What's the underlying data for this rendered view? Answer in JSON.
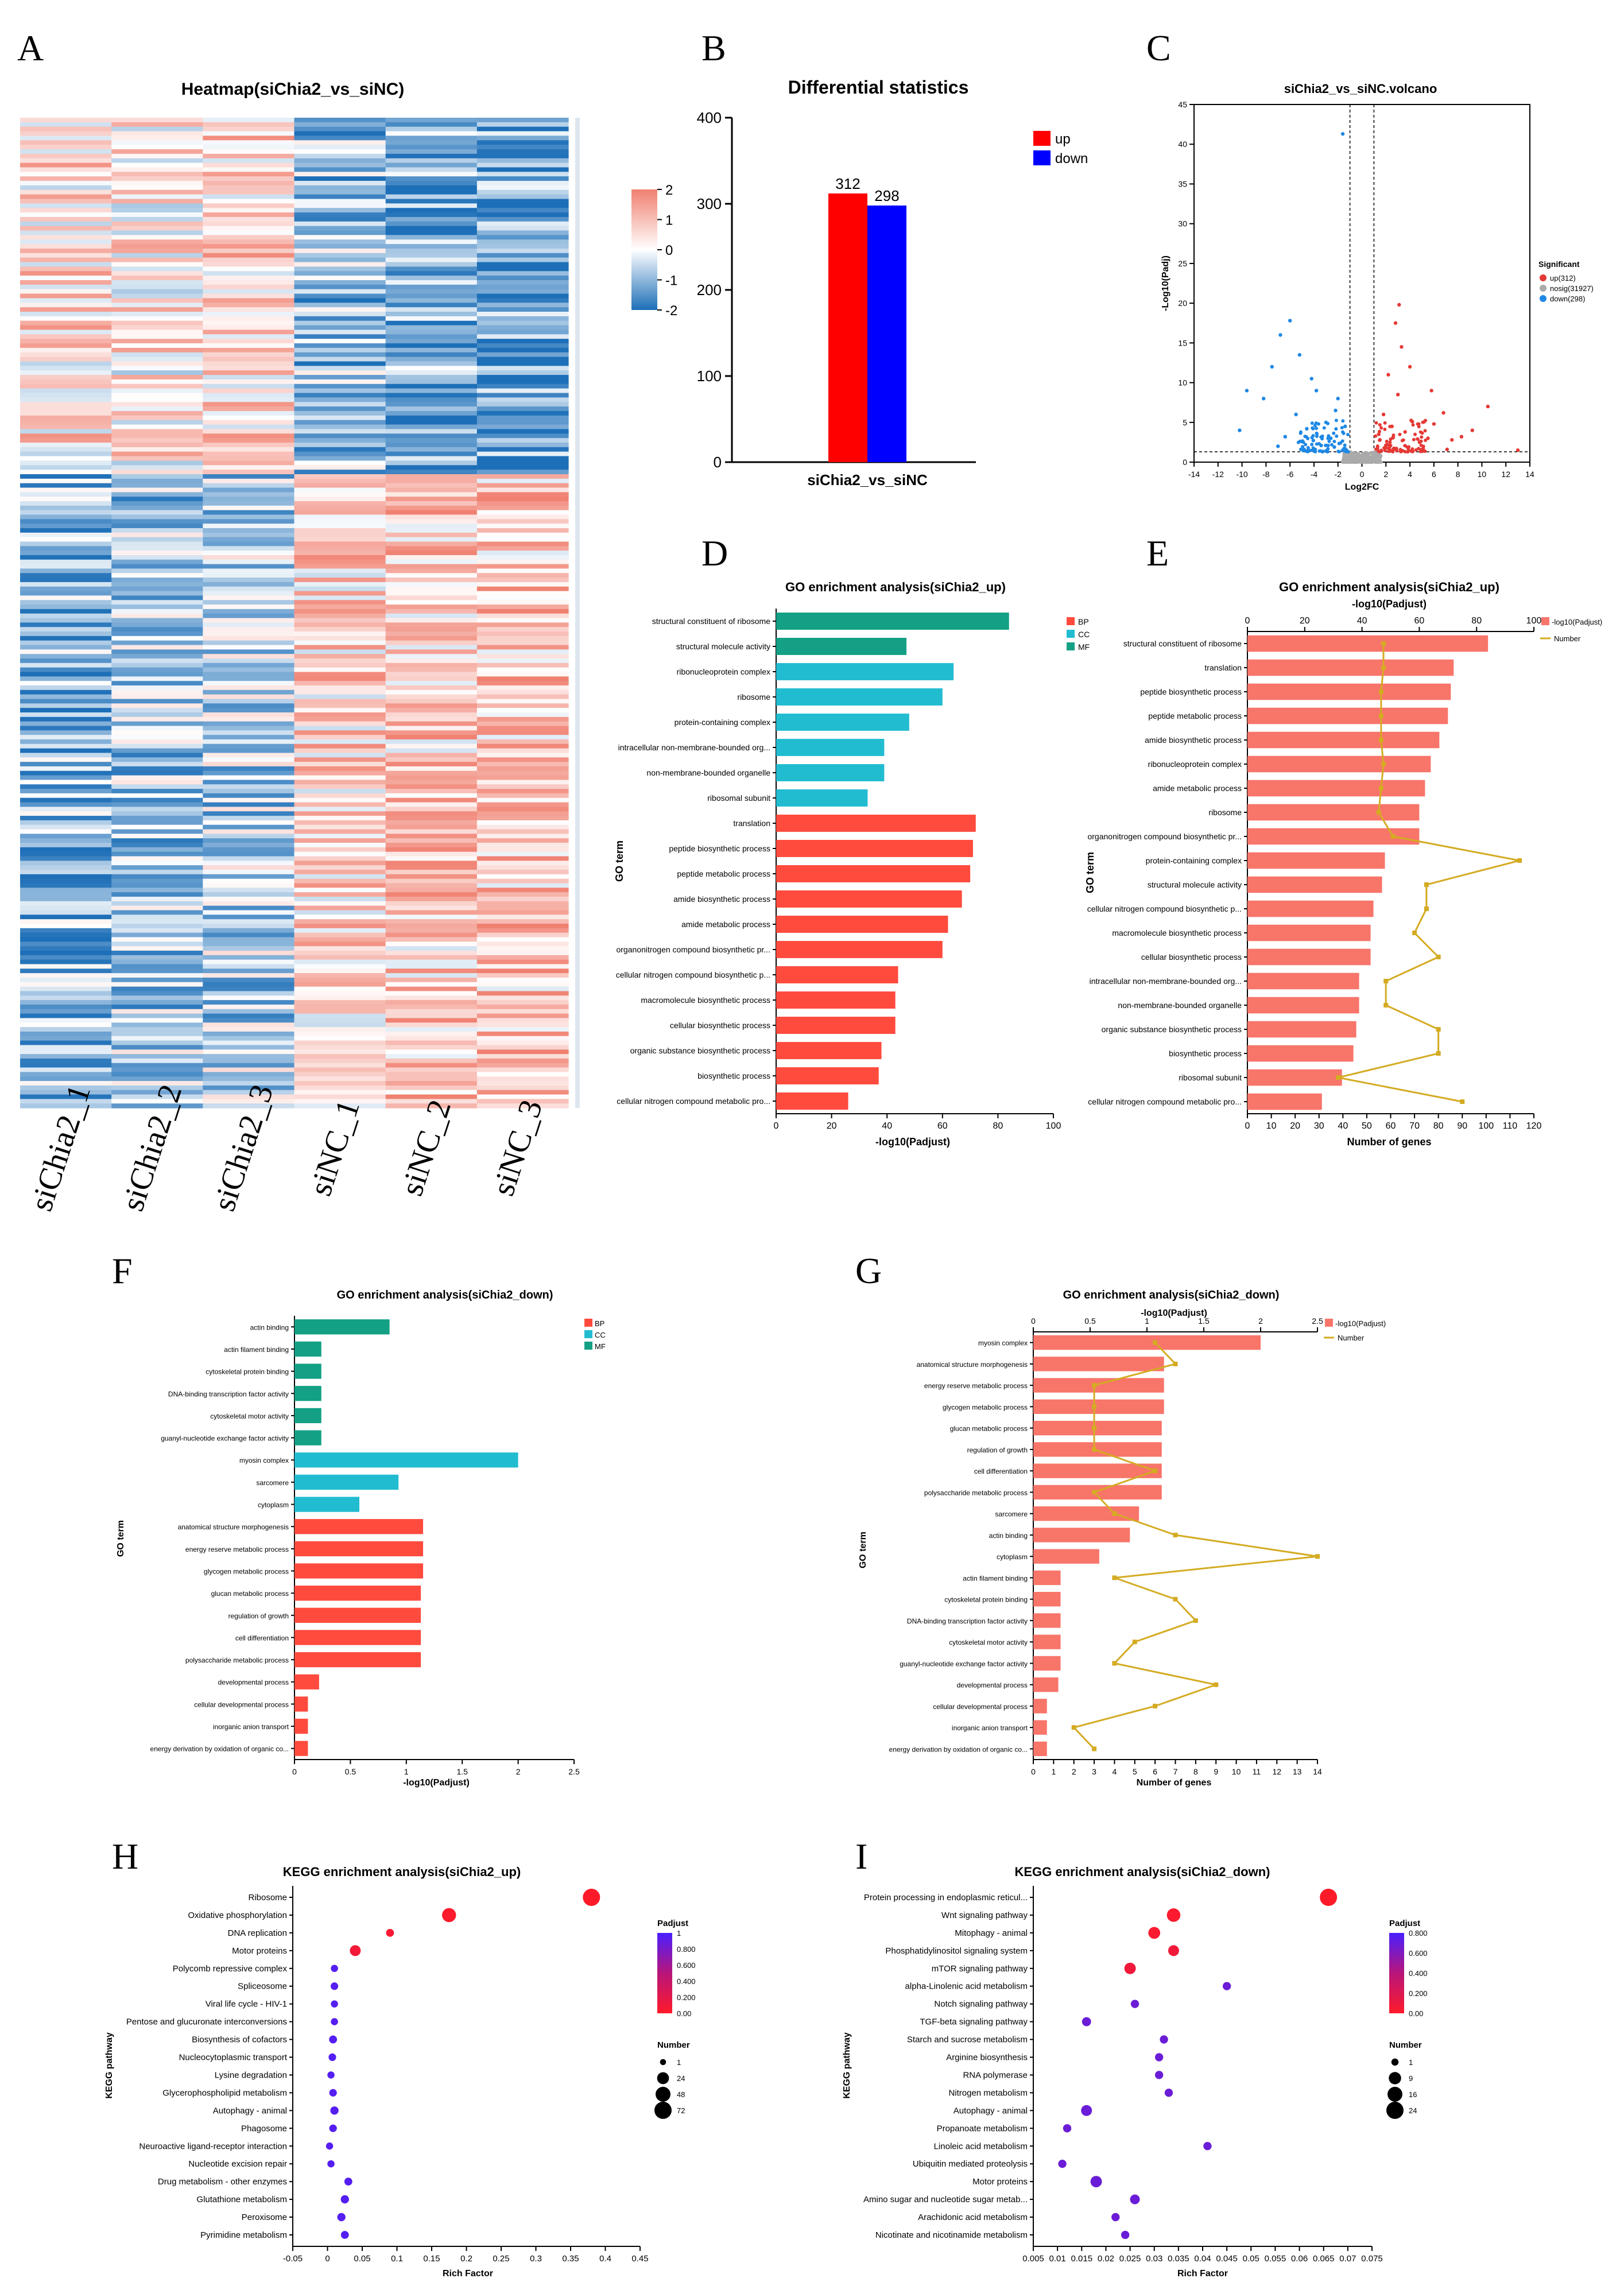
{
  "colors": {
    "up": "#ff0000",
    "down": "#0000ff",
    "bp": "#ff4b3e",
    "cc": "#22bcd1",
    "mf": "#13a085",
    "pink": "#f8756a",
    "gold": "#d4ab22"
  },
  "chart_data": [
    {
      "id": "A",
      "panel_letter": "A",
      "type": "heatmap",
      "title": "Heatmap(siChia2_vs_siNC)",
      "columns": [
        "siChia2_1",
        "siChia2_2",
        "siChia2_3",
        "siNC_1",
        "siNC_2",
        "siNC_3"
      ],
      "colorbar": {
        "ticks": [
          "2",
          "1",
          "0",
          "-1",
          "-2"
        ],
        "min": -2,
        "max": 2,
        "colors": [
          "#1d6fb8",
          "#ffffff",
          "#f08070"
        ]
      },
      "row_blocks": [
        {
          "rows": 0.36,
          "values": [
            0.6,
            0.4,
            0.7,
            -0.9,
            -1.1,
            -1.3
          ]
        },
        {
          "rows": 0.64,
          "values": [
            -1.0,
            -0.7,
            -0.6,
            0.7,
            0.8,
            0.9
          ]
        }
      ]
    },
    {
      "id": "B",
      "panel_letter": "B",
      "type": "bar",
      "title": "Differential statistics",
      "categories": [
        "siChia2_vs_siNC"
      ],
      "series": [
        {
          "name": "up",
          "values": [
            312
          ]
        },
        {
          "name": "down",
          "values": [
            298
          ]
        }
      ],
      "ylim": [
        0,
        400
      ],
      "yticks": [
        0,
        100,
        200,
        300,
        400
      ]
    },
    {
      "id": "C",
      "panel_letter": "C",
      "type": "scatter",
      "title": "siChia2_vs_siNC.volcano",
      "xlabel": "Log2FC",
      "ylabel": "-Log10(Padj)",
      "xlim": [
        -14,
        14
      ],
      "ylim": [
        0,
        45
      ],
      "xticks": [
        -14,
        -12,
        -10,
        -8,
        -6,
        -4,
        -2,
        0,
        2,
        4,
        6,
        8,
        10,
        12,
        14
      ],
      "yticks": [
        0,
        5,
        10,
        15,
        20,
        25,
        30,
        35,
        40,
        45
      ],
      "thresholds": {
        "x": [
          -1,
          1
        ],
        "y": 1.3
      },
      "legend_title": "Significant",
      "legend": [
        "up(312)",
        "nosig(31927)",
        "down(298)"
      ],
      "up_points": [
        [
          1.4,
          3.5
        ],
        [
          2.1,
          2.2
        ],
        [
          3.0,
          8.5
        ],
        [
          4.2,
          5.1
        ],
        [
          5.5,
          3.0
        ],
        [
          6.8,
          6.2
        ],
        [
          7.5,
          2.8
        ],
        [
          9.2,
          4.0
        ],
        [
          10.5,
          7.0
        ],
        [
          13.0,
          1.5
        ],
        [
          2.8,
          17.5
        ],
        [
          3.1,
          19.8
        ],
        [
          4.0,
          12.0
        ],
        [
          5.8,
          9.0
        ],
        [
          1.8,
          6.0
        ],
        [
          2.5,
          4.5
        ],
        [
          3.6,
          3.8
        ],
        [
          4.8,
          2.5
        ],
        [
          6.0,
          4.8
        ],
        [
          8.3,
          3.2
        ],
        [
          2.2,
          11.0
        ],
        [
          3.3,
          14.5
        ],
        [
          1.5,
          2.8
        ],
        [
          2.0,
          1.8
        ],
        [
          2.6,
          3.1
        ],
        [
          3.9,
          1.9
        ],
        [
          5.1,
          1.7
        ],
        [
          7.1,
          1.6
        ]
      ],
      "down_points": [
        [
          -1.6,
          41.3
        ],
        [
          -6.0,
          17.8
        ],
        [
          -6.8,
          16.0
        ],
        [
          -5.2,
          13.5
        ],
        [
          -7.5,
          12.0
        ],
        [
          -4.2,
          10.5
        ],
        [
          -3.8,
          9.0
        ],
        [
          -9.6,
          9.0
        ],
        [
          -8.2,
          8.0
        ],
        [
          -10.2,
          4.0
        ],
        [
          -2.2,
          6.5
        ],
        [
          -3.0,
          5.0
        ],
        [
          -4.6,
          4.2
        ],
        [
          -5.5,
          6.0
        ],
        [
          -6.4,
          3.2
        ],
        [
          -2.6,
          3.0
        ],
        [
          -1.8,
          2.4
        ],
        [
          -3.4,
          2.1
        ],
        [
          -5.0,
          2.6
        ],
        [
          -7.0,
          2.0
        ],
        [
          -1.5,
          1.7
        ],
        [
          -2.3,
          1.9
        ],
        [
          -3.9,
          1.6
        ],
        [
          -1.4,
          4.5
        ],
        [
          -2.0,
          8.0
        ]
      ]
    },
    {
      "id": "D",
      "panel_letter": "D",
      "type": "bar",
      "orientation": "horizontal",
      "title": "GO enrichment analysis(siChia2_up)",
      "xlabel": "-log10(Padjust)",
      "ylabel": "GO term",
      "xlim": [
        0,
        100
      ],
      "xticks": [
        0,
        20,
        40,
        60,
        80,
        100
      ],
      "legend": [
        "BP",
        "CC",
        "MF"
      ],
      "categories": [
        "structural constituent of ribosome",
        "structural molecule activity",
        "ribonucleoprotein complex",
        "ribosome",
        "protein-containing complex",
        "intracellular non-membrane-bounded org...",
        "non-membrane-bounded organelle",
        "ribosomal subunit",
        "translation",
        "peptide biosynthetic process",
        "peptide metabolic process",
        "amide biosynthetic process",
        "amide metabolic process",
        "organonitrogen compound biosynthetic pr...",
        "cellular nitrogen compound biosynthetic p...",
        "macromolecule biosynthetic process",
        "cellular biosynthetic process",
        "organic substance biosynthetic process",
        "biosynthetic process",
        "cellular nitrogen compound metabolic pro..."
      ],
      "values": [
        84,
        47,
        64,
        60,
        48,
        39,
        39,
        33,
        72,
        71,
        70,
        67,
        62,
        60,
        44,
        43,
        43,
        38,
        37,
        26
      ],
      "groups": [
        "MF",
        "MF",
        "CC",
        "CC",
        "CC",
        "CC",
        "CC",
        "CC",
        "BP",
        "BP",
        "BP",
        "BP",
        "BP",
        "BP",
        "BP",
        "BP",
        "BP",
        "BP",
        "BP",
        "BP"
      ]
    },
    {
      "id": "E",
      "panel_letter": "E",
      "type": "bar",
      "orientation": "horizontal",
      "title": "GO enrichment analysis(siChia2_up)",
      "xlabel": "Number of genes",
      "x2label": "-log10(Padjust)",
      "ylabel": "GO term",
      "xlim": [
        0,
        120
      ],
      "xticks": [
        0,
        10,
        20,
        30,
        40,
        50,
        60,
        70,
        80,
        90,
        100,
        110,
        120
      ],
      "x2lim": [
        0,
        100
      ],
      "x2ticks": [
        0,
        20,
        40,
        60,
        80,
        100
      ],
      "legend": [
        "-log10(Padjust)",
        "Number"
      ],
      "categories": [
        "structural constituent of ribosome",
        "translation",
        "peptide biosynthetic process",
        "peptide metabolic process",
        "amide biosynthetic process",
        "ribonucleoprotein complex",
        "amide metabolic process",
        "ribosome",
        "organonitrogen compound biosynthetic pr...",
        "protein-containing complex",
        "structural molecule activity",
        "cellular nitrogen compound biosynthetic p...",
        "macromolecule biosynthetic process",
        "cellular biosynthetic process",
        "intracellular non-membrane-bounded org...",
        "non-membrane-bounded organelle",
        "organic substance biosynthetic process",
        "biosynthetic process",
        "ribosomal subunit",
        "cellular nitrogen compound metabolic pro..."
      ],
      "values": [
        84,
        72,
        71,
        70,
        67,
        64,
        62,
        60,
        60,
        48,
        47,
        44,
        43,
        43,
        39,
        39,
        38,
        37,
        33,
        26
      ],
      "numbers": [
        57,
        57,
        56,
        56,
        56,
        57,
        56,
        55,
        61,
        114,
        75,
        75,
        70,
        80,
        58,
        58,
        80,
        80,
        38,
        90
      ]
    },
    {
      "id": "F",
      "panel_letter": "F",
      "type": "bar",
      "orientation": "horizontal",
      "title": "GO enrichment analysis(siChia2_down)",
      "xlabel": "-log10(Padjust)",
      "ylabel": "GO term",
      "xlim": [
        0,
        2.5
      ],
      "xticks": [
        0,
        0.5,
        1,
        1.5,
        2,
        2.5
      ],
      "legend": [
        "BP",
        "CC",
        "MF"
      ],
      "categories": [
        "actin binding",
        "actin filament binding",
        "cytoskeletal protein binding",
        "DNA-binding transcription factor activity",
        "cytoskeletal motor activity",
        "guanyl-nucleotide exchange factor activity",
        "myosin complex",
        "sarcomere",
        "cytoplasm",
        "anatomical structure morphogenesis",
        "energy reserve metabolic process",
        "glycogen metabolic process",
        "glucan metabolic process",
        "regulation of growth",
        "cell differentiation",
        "polysaccharide metabolic process",
        "developmental process",
        "cellular developmental process",
        "inorganic anion transport",
        "energy derivation by oxidation of organic co..."
      ],
      "values": [
        0.85,
        0.24,
        0.24,
        0.24,
        0.24,
        0.24,
        2.0,
        0.93,
        0.58,
        1.15,
        1.15,
        1.15,
        1.13,
        1.13,
        1.13,
        1.13,
        0.22,
        0.12,
        0.12,
        0.12
      ],
      "groups": [
        "MF",
        "MF",
        "MF",
        "MF",
        "MF",
        "MF",
        "CC",
        "CC",
        "CC",
        "BP",
        "BP",
        "BP",
        "BP",
        "BP",
        "BP",
        "BP",
        "BP",
        "BP",
        "BP",
        "BP"
      ]
    },
    {
      "id": "G",
      "panel_letter": "G",
      "type": "bar",
      "orientation": "horizontal",
      "title": "GO enrichment analysis(siChia2_down)",
      "xlabel": "Number of genes",
      "x2label": "-log10(Padjust)",
      "ylabel": "GO term",
      "xlim": [
        0,
        14
      ],
      "xticks": [
        0,
        1,
        2,
        3,
        4,
        5,
        6,
        7,
        8,
        9,
        10,
        11,
        12,
        13,
        14
      ],
      "x2lim": [
        0,
        2.5
      ],
      "x2ticks": [
        0,
        0.5,
        1,
        1.5,
        2,
        2.5
      ],
      "legend": [
        "-log10(Padjust)",
        "Number"
      ],
      "categories": [
        "myosin complex",
        "anatomical structure morphogenesis",
        "energy reserve metabolic process",
        "glycogen metabolic process",
        "glucan metabolic process",
        "regulation of growth",
        "cell differentiation",
        "polysaccharide metabolic process",
        "sarcomere",
        "actin binding",
        "cytoplasm",
        "actin filament binding",
        "cytoskeletal protein binding",
        "DNA-binding transcription factor activity",
        "cytoskeletal motor activity",
        "guanyl-nucleotide exchange factor activity",
        "developmental process",
        "cellular developmental process",
        "inorganic anion transport",
        "energy derivation by oxidation of organic co..."
      ],
      "values": [
        2.0,
        1.15,
        1.15,
        1.15,
        1.13,
        1.13,
        1.13,
        1.13,
        0.93,
        0.85,
        0.58,
        0.24,
        0.24,
        0.24,
        0.24,
        0.24,
        0.22,
        0.12,
        0.12,
        0.12
      ],
      "numbers": [
        6,
        7,
        3,
        3,
        3,
        3,
        6,
        3,
        4,
        7,
        14,
        4,
        7,
        8,
        5,
        4,
        9,
        6,
        2,
        3
      ]
    },
    {
      "id": "H",
      "panel_letter": "H",
      "type": "scatter",
      "title": "KEGG enrichment analysis(siChia2_up)",
      "xlabel": "Rich Factor",
      "ylabel": "KEGG pathway",
      "xlim": [
        -0.05,
        0.45
      ],
      "xticks": [
        -0.05,
        0,
        0.05,
        0.1,
        0.15,
        0.2,
        0.25,
        0.3,
        0.35,
        0.4,
        0.45
      ],
      "categories": [
        "Ribosome",
        "Oxidative phosphorylation",
        "DNA replication",
        "Motor proteins",
        "Polycomb repressive complex",
        "Spliceosome",
        "Viral life cycle - HIV-1",
        "Pentose and glucuronate interconversions",
        "Biosynthesis of cofactors",
        "Nucleocytoplasmic transport",
        "Lysine degradation",
        "Glycerophospholipid metabolism",
        "Autophagy - animal",
        "Phagosome",
        "Neuroactive ligand-receptor interaction",
        "Nucleotide excision repair",
        "Drug metabolism - other enzymes",
        "Glutathione metabolism",
        "Peroxisome",
        "Pyrimidine metabolism"
      ],
      "x": [
        0.38,
        0.175,
        0.09,
        0.04,
        0.01,
        0.01,
        0.01,
        0.01,
        0.008,
        0.007,
        0.005,
        0.008,
        0.01,
        0.008,
        0.003,
        0.005,
        0.03,
        0.025,
        0.02,
        0.025
      ],
      "number": [
        72,
        40,
        5,
        18,
        3,
        4,
        3,
        3,
        5,
        4,
        3,
        4,
        6,
        4,
        3,
        3,
        5,
        6,
        6,
        5
      ],
      "padj": [
        0.0,
        0.02,
        0.05,
        0.08,
        0.95,
        0.95,
        0.95,
        0.95,
        0.95,
        0.95,
        0.95,
        0.95,
        0.95,
        0.95,
        0.95,
        0.95,
        0.95,
        0.95,
        0.95,
        0.95
      ],
      "padj_legend": {
        "title": "Padjust",
        "ticks": [
          "1",
          "0.800",
          "0.600",
          "0.400",
          "0.200",
          "0.00"
        ]
      },
      "size_legend": {
        "title": "Number",
        "values": [
          "1",
          "24",
          "48",
          "72"
        ]
      }
    },
    {
      "id": "I",
      "panel_letter": "I",
      "type": "scatter",
      "title": "KEGG enrichment analysis(siChia2_down)",
      "xlabel": "Rich Factor",
      "ylabel": "KEGG pathway",
      "xlim": [
        0.005,
        0.075
      ],
      "xticks": [
        0.005,
        0.01,
        0.015,
        0.02,
        0.025,
        0.03,
        0.035,
        0.04,
        0.045,
        0.05,
        0.055,
        0.06,
        0.065,
        0.07,
        0.075
      ],
      "categories": [
        "Protein processing in endoplasmic reticul...",
        "Wnt signaling pathway",
        "Mitophagy - animal",
        "Phosphatidylinositol signaling system",
        "mTOR signaling pathway",
        "alpha-Linolenic acid metabolism",
        "Notch signaling pathway",
        "TGF-beta signaling pathway",
        "Starch and sucrose metabolism",
        "Arginine biosynthesis",
        "RNA polymerase",
        "Nitrogen metabolism",
        "Autophagy - animal",
        "Propanoate metabolism",
        "Linoleic acid metabolism",
        "Ubiquitin mediated proteolysis",
        "Motor proteins",
        "Amino sugar and nucleotide sugar metab...",
        "Arachidonic acid metabolism",
        "Nicotinate and nicotinamide metabolism"
      ],
      "x": [
        0.066,
        0.034,
        0.03,
        0.034,
        0.025,
        0.045,
        0.026,
        0.016,
        0.032,
        0.031,
        0.031,
        0.033,
        0.016,
        0.012,
        0.041,
        0.011,
        0.018,
        0.026,
        0.022,
        0.024
      ],
      "number": [
        24,
        12,
        8,
        6,
        7,
        2,
        2,
        3,
        2,
        2,
        2,
        2,
        6,
        2,
        2,
        2,
        7,
        4,
        2,
        2
      ],
      "padj": [
        0.0,
        0.03,
        0.03,
        0.1,
        0.1,
        0.85,
        0.85,
        0.85,
        0.85,
        0.85,
        0.85,
        0.85,
        0.85,
        0.85,
        0.85,
        0.85,
        0.85,
        0.85,
        0.85,
        0.85
      ],
      "padj_legend": {
        "title": "Padjust",
        "ticks": [
          "0.800",
          "0.600",
          "0.400",
          "0.200",
          "0.00"
        ]
      },
      "size_legend": {
        "title": "Number",
        "values": [
          "1",
          "9",
          "16",
          "24"
        ]
      }
    }
  ]
}
